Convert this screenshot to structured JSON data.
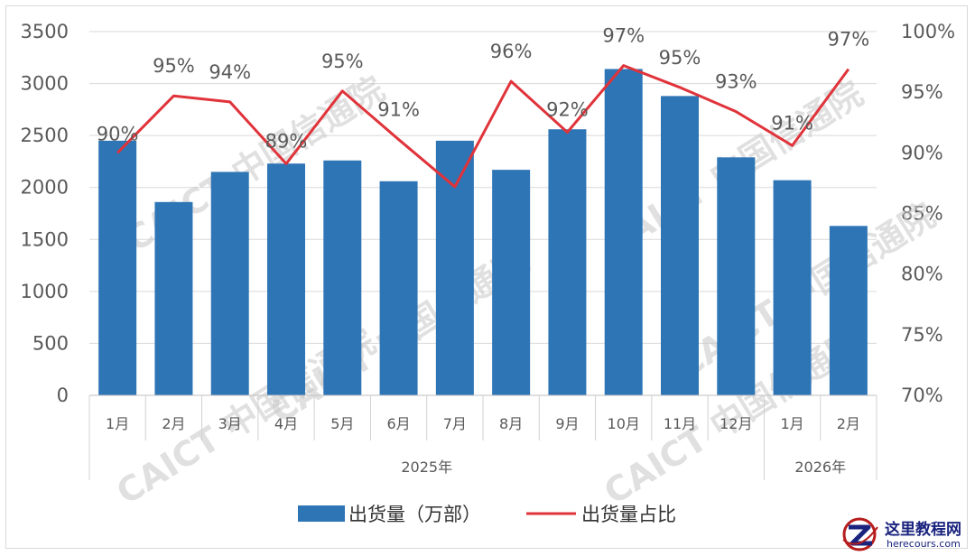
{
  "chart_data": {
    "type": "bar",
    "categories": [
      "1月",
      "2月",
      "3月",
      "4月",
      "5月",
      "6月",
      "7月",
      "8月",
      "9月",
      "10月",
      "11月",
      "12月",
      "1月",
      "2月"
    ],
    "groups": [
      {
        "label": "2025年",
        "count": 12
      },
      {
        "label": "2026年",
        "count": 2
      }
    ],
    "series": [
      {
        "name": "出货量（万部）",
        "type": "bar",
        "axis": "left",
        "color": "#2e75b6",
        "values": [
          2450,
          1860,
          2150,
          2230,
          2260,
          2060,
          2450,
          2170,
          2560,
          3140,
          2880,
          2290,
          2070,
          1630
        ]
      },
      {
        "name": "出货量占比",
        "type": "line",
        "axis": "right",
        "color": "#e0333a",
        "values": [
          90.0,
          94.7,
          94.2,
          89.1,
          95.1,
          91.1,
          87.2,
          95.9,
          91.7,
          97.2,
          95.4,
          93.4,
          90.6,
          96.9
        ],
        "labels": [
          "90%",
          "95%",
          "94%",
          "89%",
          "95%",
          "91%",
          "",
          "96%",
          "92%",
          "97%",
          "95%",
          "93%",
          "91%",
          "97%"
        ]
      }
    ],
    "y_left": {
      "min": 0,
      "max": 3500,
      "ticks": [
        "0",
        "500",
        "1000",
        "1500",
        "2000",
        "2500",
        "3000",
        "3500"
      ]
    },
    "y_right": {
      "min": 70,
      "max": 100,
      "ticks": [
        "70%",
        "75%",
        "80%",
        "85%",
        "90%",
        "95%",
        "100%"
      ]
    },
    "grid": true,
    "legend_position": "bottom"
  },
  "watermark": {
    "text": "CAICT 中国信通院"
  },
  "logo": {
    "title": "这里教程网",
    "url": "herecours.com"
  }
}
